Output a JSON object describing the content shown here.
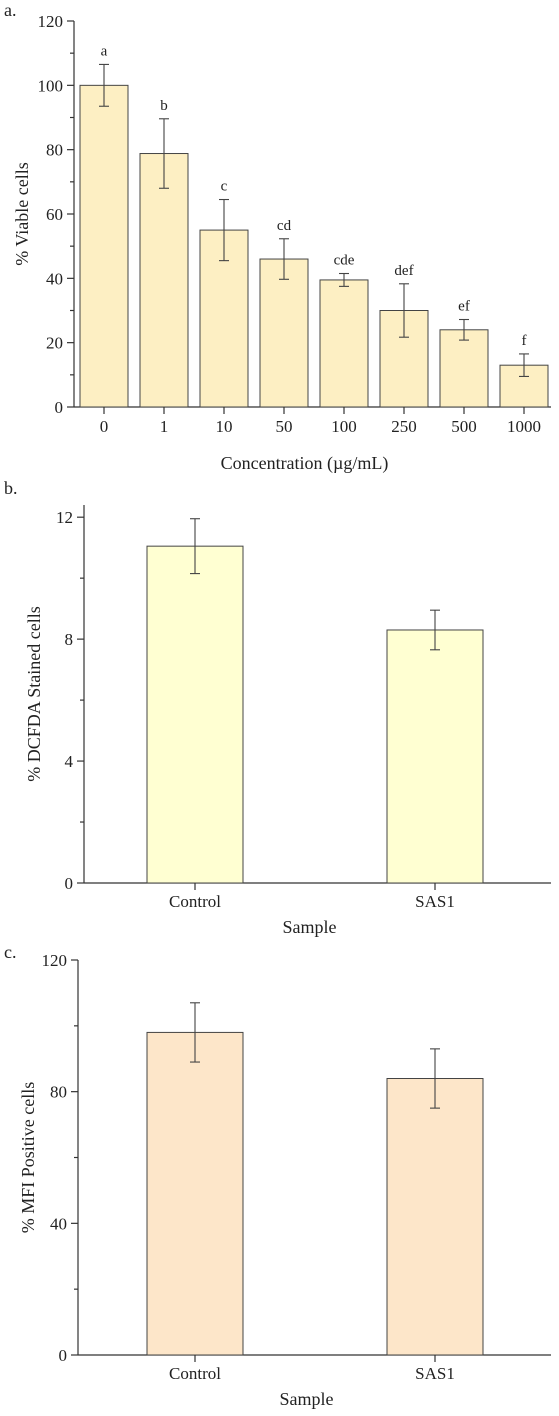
{
  "chart_data": [
    {
      "type": "bar",
      "panel_label": "a.",
      "categories": [
        "0",
        "1",
        "10",
        "50",
        "100",
        "250",
        "500",
        "1000"
      ],
      "values": [
        100,
        78.8,
        55,
        46,
        39.5,
        30,
        24,
        13
      ],
      "errors": [
        6.5,
        10.8,
        9.5,
        6.3,
        2,
        8.3,
        3.2,
        3.5
      ],
      "significance": [
        "a",
        "b",
        "c",
        "cd",
        "cde",
        "def",
        "ef",
        "f"
      ],
      "xlabel": "Concentration (µg/mL)",
      "ylabel": "% Viable cells",
      "ylim": [
        0,
        120
      ],
      "yticks": [
        0,
        20,
        40,
        60,
        80,
        100,
        120
      ],
      "bar_color": "#fdefc3"
    },
    {
      "type": "bar",
      "panel_label": "b.",
      "categories": [
        "Control",
        "SAS1"
      ],
      "values": [
        11.05,
        8.3
      ],
      "errors": [
        0.9,
        0.65
      ],
      "xlabel": "Sample",
      "ylabel": "% DCFDA Stained cells",
      "ylim": [
        0,
        12.4
      ],
      "yticks": [
        0,
        4,
        8,
        12
      ],
      "bar_color": "#ffffd2"
    },
    {
      "type": "bar",
      "panel_label": "c.",
      "categories": [
        "Control",
        "SAS1"
      ],
      "values": [
        98,
        84
      ],
      "errors": [
        9,
        9
      ],
      "xlabel": "Sample",
      "ylabel": "% MFI Positive cells",
      "ylim": [
        0,
        120
      ],
      "yticks": [
        0,
        40,
        80,
        120
      ],
      "bar_color": "#fde6c9"
    }
  ]
}
